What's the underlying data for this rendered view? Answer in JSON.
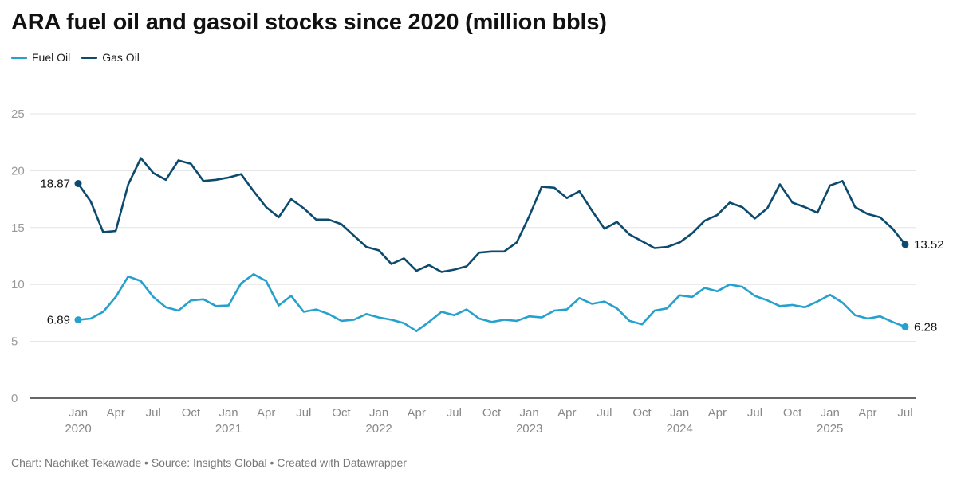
{
  "title": "ARA fuel oil and gasoil stocks since 2020 (million bbls)",
  "footer": "Chart: Nachiket Tekawade • Source: Insights Global • Created with Datawrapper",
  "colors": {
    "fuel_oil": "#26a0cd",
    "gas_oil": "#0c4a6e",
    "grid": "#e3e3e3",
    "axis": "#333333"
  },
  "chart_data": {
    "type": "line",
    "title": "ARA fuel oil and gasoil stocks since 2020 (million bbls)",
    "x_start": "2020-01",
    "x_end": "2025-07",
    "x_ticks": [
      {
        "label": "Jan",
        "year": "2020",
        "month": "2020-01"
      },
      {
        "label": "Apr",
        "year": "",
        "month": "2020-04"
      },
      {
        "label": "Jul",
        "year": "",
        "month": "2020-07"
      },
      {
        "label": "Oct",
        "year": "",
        "month": "2020-10"
      },
      {
        "label": "Jan",
        "year": "2021",
        "month": "2021-01"
      },
      {
        "label": "Apr",
        "year": "",
        "month": "2021-04"
      },
      {
        "label": "Jul",
        "year": "",
        "month": "2021-07"
      },
      {
        "label": "Oct",
        "year": "",
        "month": "2021-10"
      },
      {
        "label": "Jan",
        "year": "2022",
        "month": "2022-01"
      },
      {
        "label": "Apr",
        "year": "",
        "month": "2022-04"
      },
      {
        "label": "Jul",
        "year": "",
        "month": "2022-07"
      },
      {
        "label": "Oct",
        "year": "",
        "month": "2022-10"
      },
      {
        "label": "Jan",
        "year": "2023",
        "month": "2023-01"
      },
      {
        "label": "Apr",
        "year": "",
        "month": "2023-04"
      },
      {
        "label": "Jul",
        "year": "",
        "month": "2023-07"
      },
      {
        "label": "Oct",
        "year": "",
        "month": "2023-10"
      },
      {
        "label": "Jan",
        "year": "2024",
        "month": "2024-01"
      },
      {
        "label": "Apr",
        "year": "",
        "month": "2024-04"
      },
      {
        "label": "Jul",
        "year": "",
        "month": "2024-07"
      },
      {
        "label": "Oct",
        "year": "",
        "month": "2024-10"
      },
      {
        "label": "Jan",
        "year": "2025",
        "month": "2025-01"
      },
      {
        "label": "Apr",
        "year": "",
        "month": "2025-04"
      },
      {
        "label": "Jul",
        "year": "",
        "month": "2025-07"
      }
    ],
    "y_ticks": [
      0,
      5,
      10,
      15,
      20,
      25
    ],
    "ylim": [
      0,
      25
    ],
    "grid": true,
    "legend": "top-left",
    "series": [
      {
        "name": "Fuel Oil",
        "color": "#26a0cd",
        "end_labels": [
          "6.89",
          "6.28"
        ],
        "values": [
          6.89,
          7.0,
          7.6,
          8.9,
          10.7,
          10.3,
          8.9,
          8.0,
          7.7,
          8.6,
          8.7,
          8.1,
          8.15,
          10.1,
          10.9,
          10.3,
          8.15,
          9.0,
          7.6,
          7.8,
          7.4,
          6.8,
          6.9,
          7.4,
          7.1,
          6.9,
          6.6,
          5.9,
          6.7,
          7.6,
          7.3,
          7.8,
          7.0,
          6.7,
          6.9,
          6.8,
          7.2,
          7.1,
          7.7,
          7.8,
          8.8,
          8.3,
          8.5,
          7.9,
          6.8,
          6.5,
          7.7,
          7.9,
          9.05,
          8.9,
          9.7,
          9.4,
          10.0,
          9.8,
          9.0,
          8.6,
          8.1,
          8.2,
          8.0,
          8.5,
          9.1,
          8.4,
          7.3,
          7.0,
          7.2,
          6.7,
          6.28
        ]
      },
      {
        "name": "Gas Oil",
        "color": "#0c4a6e",
        "end_labels": [
          "18.87",
          "13.52"
        ],
        "values": [
          18.87,
          17.3,
          14.6,
          14.7,
          18.8,
          21.1,
          19.8,
          19.2,
          20.9,
          20.6,
          19.1,
          19.2,
          19.4,
          19.7,
          18.2,
          16.8,
          15.9,
          17.5,
          16.7,
          15.7,
          15.7,
          15.3,
          14.3,
          13.3,
          13.0,
          11.8,
          12.3,
          11.2,
          11.7,
          11.1,
          11.3,
          11.6,
          12.8,
          12.9,
          12.9,
          13.7,
          16.0,
          18.6,
          18.5,
          17.6,
          18.2,
          16.5,
          14.9,
          15.5,
          14.4,
          13.8,
          13.2,
          13.3,
          13.7,
          14.5,
          15.6,
          16.1,
          17.2,
          16.8,
          15.8,
          16.7,
          18.8,
          17.2,
          16.8,
          16.3,
          18.7,
          19.1,
          16.8,
          16.2,
          15.9,
          14.9,
          13.52
        ]
      }
    ]
  }
}
